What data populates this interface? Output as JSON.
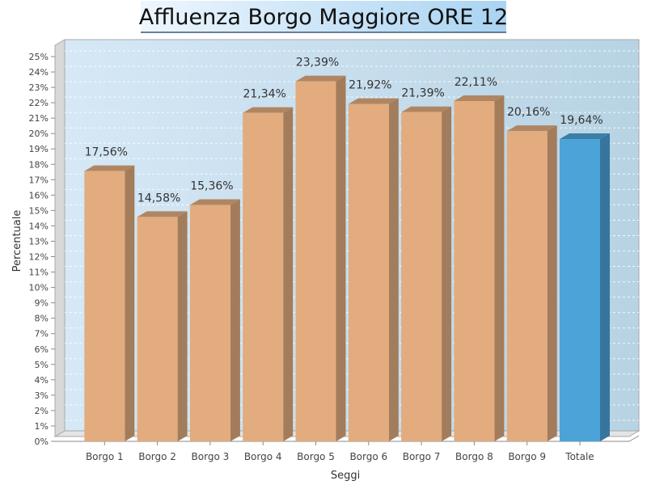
{
  "chart_data": {
    "type": "bar",
    "title": "Affluenza Borgo Maggiore ORE 12",
    "xlabel": "Seggi",
    "ylabel": "Percentuale",
    "categories": [
      "Borgo 1",
      "Borgo 2",
      "Borgo 3",
      "Borgo 4",
      "Borgo 5",
      "Borgo 6",
      "Borgo 7",
      "Borgo 8",
      "Borgo 9",
      "Totale"
    ],
    "values": [
      17.56,
      14.58,
      15.36,
      21.34,
      23.39,
      21.92,
      21.39,
      22.11,
      20.16,
      19.64
    ],
    "value_labels": [
      "17,56%",
      "14,58%",
      "15,36%",
      "21,34%",
      "23,39%",
      "21,92%",
      "21,39%",
      "22,11%",
      "20,16%",
      "19,64%"
    ],
    "y_ticks": [
      "0%",
      "1%",
      "2%",
      "3%",
      "4%",
      "5%",
      "6%",
      "7%",
      "8%",
      "9%",
      "10%",
      "11%",
      "12%",
      "13%",
      "14%",
      "15%",
      "16%",
      "17%",
      "18%",
      "19%",
      "20%",
      "21%",
      "22%",
      "23%",
      "24%",
      "25%"
    ],
    "ylim": [
      0,
      25
    ],
    "grid": true,
    "style": "3d",
    "colors": {
      "bar": "#e2ac7e",
      "highlight": "#4ca3d8",
      "plot_bg_left": "#d6e8f6",
      "plot_bg_right": "#b7d3e4",
      "title_bg_left": "#eef6fd",
      "title_bg_right": "#a9d4f2"
    },
    "highlight_category": "Totale"
  }
}
